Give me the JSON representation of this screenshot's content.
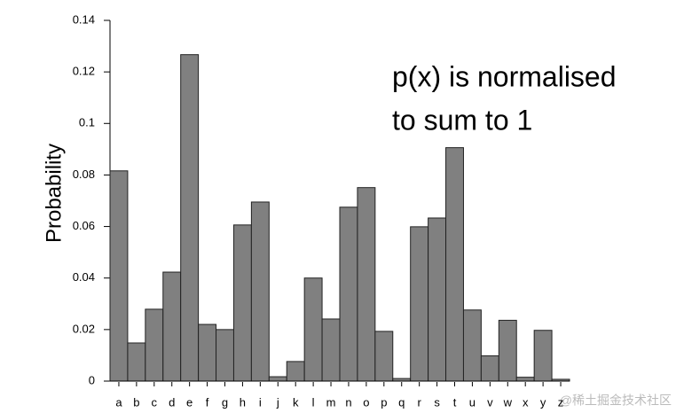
{
  "chart_data": {
    "type": "bar",
    "y_label": "Probability",
    "categories": [
      "a",
      "b",
      "c",
      "d",
      "e",
      "f",
      "g",
      "h",
      "i",
      "j",
      "k",
      "l",
      "m",
      "n",
      "o",
      "p",
      "q",
      "r",
      "s",
      "t",
      "u",
      "v",
      "w",
      "x",
      "y",
      "z"
    ],
    "values": [
      0.0816,
      0.0148,
      0.0279,
      0.0423,
      0.1267,
      0.022,
      0.02,
      0.0606,
      0.0695,
      0.0017,
      0.0076,
      0.04,
      0.0241,
      0.0675,
      0.0751,
      0.0193,
      0.001,
      0.0599,
      0.0633,
      0.0906,
      0.0276,
      0.0098,
      0.0236,
      0.0015,
      0.0197,
      0.0007
    ],
    "color": "#808080",
    "ylim": [
      0,
      0.14
    ],
    "yticks": [
      0,
      0.02,
      0.04,
      0.06,
      0.08,
      0.1,
      0.12,
      0.14
    ],
    "annotation": [
      "p(x) is normalised",
      "to sum to 1"
    ],
    "watermark": "@稀土掘金技术社区"
  }
}
